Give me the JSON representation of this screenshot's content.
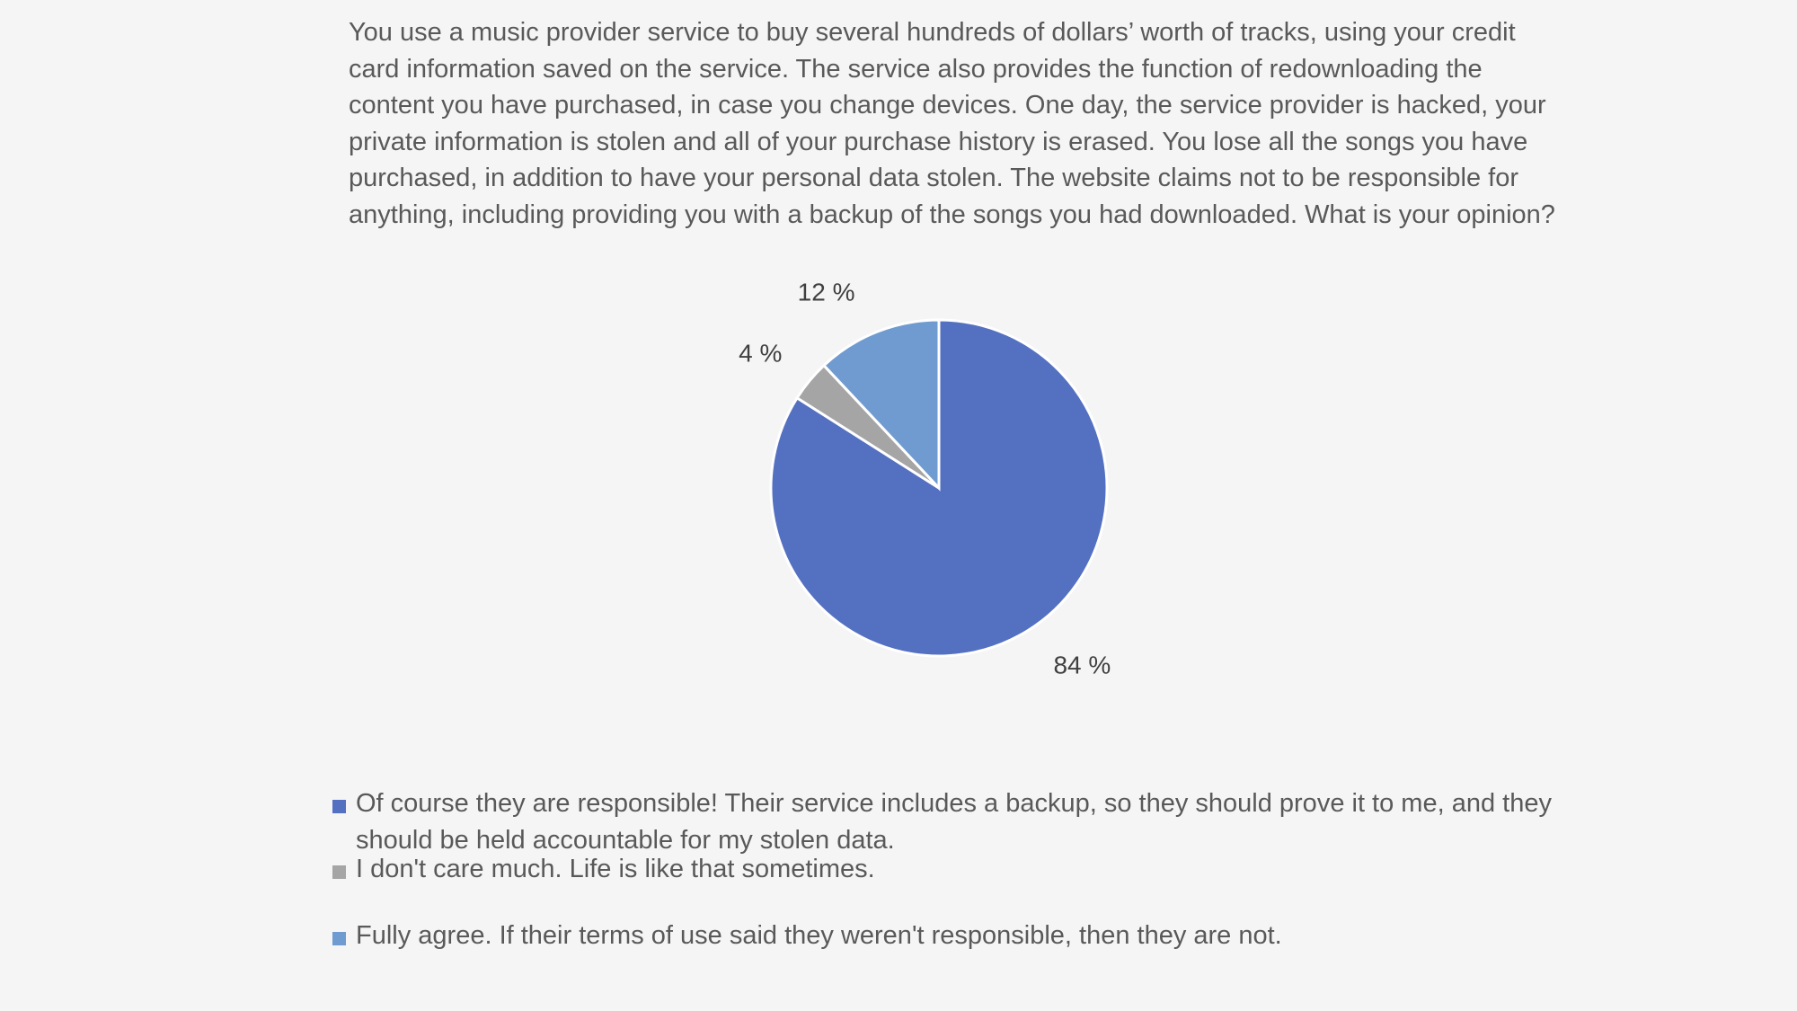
{
  "title": "You use a music provider service to buy several hundreds of dollars’ worth of tracks, using your credit card information saved on the service. The service also provides the function of redownloading the content you have purchased, in case you change devices. One day, the service provider is hacked, your private information is stolen and all of your purchase history is erased. You lose all the songs you have purchased, in addition to have your personal data stolen. The website claims not to be responsible for anything, including providing you with a backup of the songs you had downloaded. What is your opinion?",
  "chart_data": {
    "type": "pie",
    "title": "You use a music provider service to buy several hundreds of dollars’ worth of tracks, using your credit card information saved on the service. The service also provides the function of redownloading the content you have purchased, in case you change devices. One day, the service provider is hacked, your private information is stolen and all of your purchase history is erased. You lose all the songs you have purchased, in addition to have your personal data stolen. The website claims not to be responsible for anything, including providing you with a backup of the songs you had downloaded. What is your opinion?",
    "categories": [
      "Of course they are responsible! Their service includes a backup, so they should prove it to me, and they should be held accountable for my stolen data.",
      "I don't care much. Life is like that sometimes.",
      "Fully agree. If their terms of use said they weren't responsible, then they are not."
    ],
    "values": [
      84,
      4,
      12
    ],
    "data_labels": [
      "84 %",
      "4 %",
      "12 %"
    ],
    "colors": [
      "#5470c1",
      "#a5a5a5",
      "#6f9bd1"
    ],
    "legend_position": "bottom",
    "start_angle_deg": 0,
    "direction": "clockwise"
  },
  "legend": {
    "items": [
      {
        "label": "Of course they are responsible! Their service includes a backup, so they should prove it to me, and they should be held accountable for my stolen data.",
        "color": "#5470c1"
      },
      {
        "label": "I don't care much. Life is like that sometimes.",
        "color": "#a5a5a5"
      },
      {
        "label": "Fully agree. If their terms of use said they weren't responsible, then they are not.",
        "color": "#6f9bd1"
      }
    ]
  }
}
